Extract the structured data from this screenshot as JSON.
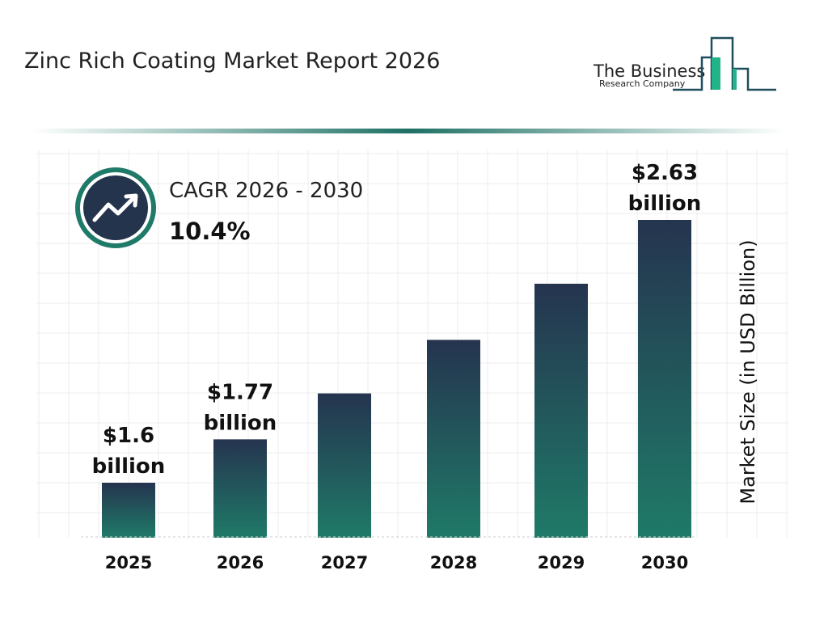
{
  "title": "Zinc Rich Coating Market Report 2026",
  "logo": {
    "line1": "The Business",
    "line2": "Research Company"
  },
  "cagr": {
    "label": "CAGR 2026 - 2030",
    "value": "10.4%",
    "icon": "trending-up-icon"
  },
  "colors": {
    "bar_top": "#25344f",
    "bar_bottom": "#1f7a68",
    "accent": "#1f7a68",
    "navy": "#24344d"
  },
  "chart_data": {
    "type": "bar",
    "title": "",
    "xlabel": "",
    "ylabel": "Market Size (in USD Billion)",
    "categories": [
      "2025",
      "2026",
      "2027",
      "2028",
      "2029",
      "2030"
    ],
    "values": [
      1.6,
      1.77,
      1.95,
      2.16,
      2.38,
      2.63
    ],
    "data_labels": [
      {
        "index": 0,
        "line1": "$1.6",
        "line2": "billion"
      },
      {
        "index": 1,
        "line1": "$1.77",
        "line2": "billion"
      },
      {
        "index": 5,
        "line1": "$2.63",
        "line2": "billion"
      }
    ],
    "grid": true,
    "legend": "none"
  }
}
